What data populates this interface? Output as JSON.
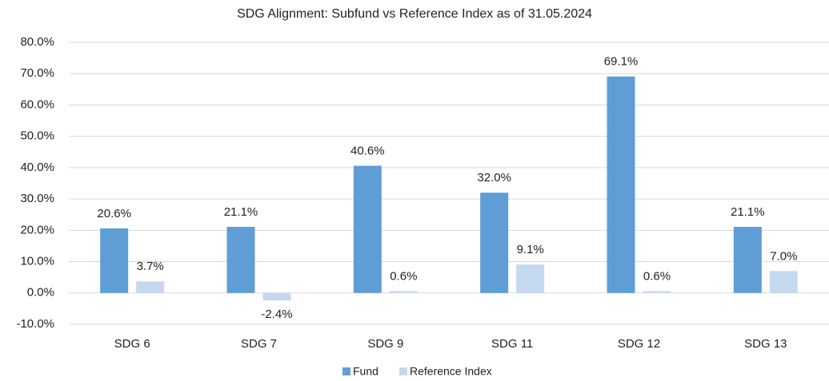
{
  "chart_data": {
    "type": "bar",
    "title": "SDG Alignment: Subfund vs Reference Index as of 31.05.2024",
    "categories": [
      "SDG 6",
      "SDG 7",
      "SDG 9",
      "SDG 11",
      "SDG 12",
      "SDG 13"
    ],
    "series": [
      {
        "name": "Fund",
        "color": "#5f9dd6",
        "values": [
          20.6,
          21.1,
          40.6,
          32.0,
          69.1,
          21.1
        ],
        "value_labels": [
          "20.6%",
          "21.1%",
          "40.6%",
          "32.0%",
          "69.1%",
          "21.1%"
        ]
      },
      {
        "name": "Reference Index",
        "color": "#c5d9ee",
        "values": [
          3.7,
          -2.4,
          0.6,
          9.1,
          0.6,
          7.0
        ],
        "value_labels": [
          "3.7%",
          "-2.4%",
          "0.6%",
          "9.1%",
          "0.6%",
          "7.0%"
        ]
      }
    ],
    "ylim": [
      -10,
      80
    ],
    "yticks": [
      {
        "value": -10,
        "label": "-10.0%"
      },
      {
        "value": 0,
        "label": "0.0%"
      },
      {
        "value": 10,
        "label": "10.0%"
      },
      {
        "value": 20,
        "label": "20.0%"
      },
      {
        "value": 30,
        "label": "30.0%"
      },
      {
        "value": 40,
        "label": "40.0%"
      },
      {
        "value": 50,
        "label": "50.0%"
      },
      {
        "value": 60,
        "label": "60.0%"
      },
      {
        "value": 70,
        "label": "70.0%"
      },
      {
        "value": 80,
        "label": "80.0%"
      }
    ],
    "grid": true,
    "legend": "bottom"
  }
}
